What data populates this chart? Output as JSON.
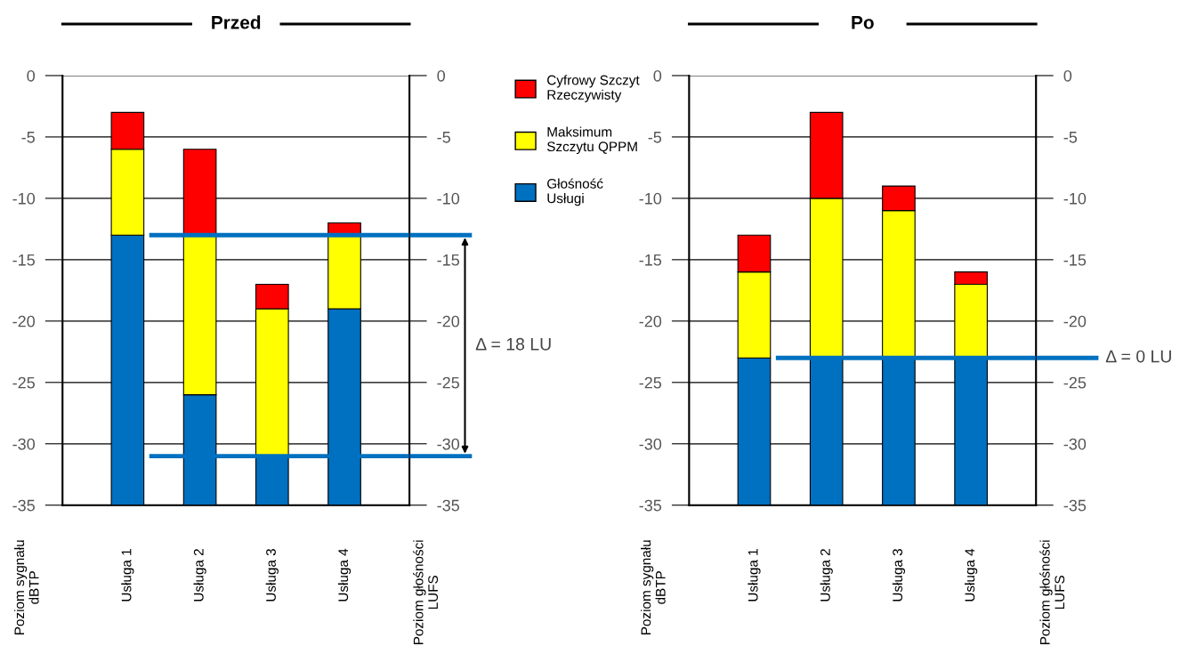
{
  "chart_data": [
    {
      "type": "bar",
      "title": "Przed",
      "categories": [
        "Usługa 1",
        "Usługa 2",
        "Usługa 3",
        "Usługa 4"
      ],
      "series": [
        {
          "name": "Głośność\nUsługi",
          "color": "#0070c0",
          "base": [
            -35,
            -35,
            -35,
            -35
          ],
          "values": [
            22,
            9,
            4,
            16
          ]
        },
        {
          "name": "Maksimum\nSzczytu QPPM",
          "color": "#ffff00",
          "base": [
            -13,
            -26,
            -31,
            -19
          ],
          "values": [
            7,
            13,
            12,
            6
          ]
        },
        {
          "name": "Cyfrowy Szczyt\nRzeczywisty",
          "color": "#ff0000",
          "base": [
            -6,
            -13,
            -19,
            -13
          ],
          "values": [
            3,
            7,
            2,
            1
          ]
        }
      ],
      "ylim": [
        -35,
        0
      ],
      "yticks": [
        0,
        -5,
        -10,
        -15,
        -20,
        -25,
        -30,
        -35
      ],
      "y2lim": [
        -35,
        0
      ],
      "y2ticks": [
        0,
        -5,
        -10,
        -15,
        -20,
        -25,
        -30,
        -35
      ],
      "ylabel": "Poziom sygnału\ndBTP",
      "y2label": "Poziom głośności\nLUFS",
      "grid": "y",
      "legend": "right",
      "ref_lines": [
        {
          "axis": "y",
          "value": -13,
          "color": "#0070c0"
        },
        {
          "axis": "y",
          "value": -31,
          "color": "#0070c0"
        }
      ],
      "annotations": [
        "Δ = 18 LU"
      ]
    },
    {
      "type": "bar",
      "title": "Po",
      "categories": [
        "Usługa 1",
        "Usługa 2",
        "Usługa 3",
        "Usługa 4"
      ],
      "series": [
        {
          "color": "#0070c0",
          "base": [
            -35,
            -35,
            -35,
            -35
          ],
          "values": [
            12,
            12,
            12,
            12
          ]
        },
        {
          "color": "#ffff00",
          "base": [
            -23,
            -23,
            -23,
            -23
          ],
          "values": [
            7,
            13,
            12,
            6
          ]
        },
        {
          "color": "#ff0000",
          "base": [
            -16,
            -10,
            -11,
            -17
          ],
          "values": [
            3,
            7,
            2,
            1
          ]
        }
      ],
      "ylim": [
        -35,
        0
      ],
      "yticks": [
        0,
        -5,
        -10,
        -15,
        -20,
        -25,
        -30,
        -35
      ],
      "y2lim": [
        -35,
        0
      ],
      "y2ticks": [
        0,
        -5,
        -10,
        -15,
        -20,
        -25,
        -30,
        -35
      ],
      "ylabel": "Poziom sygnału\ndBTP",
      "y2label": "Poziom głośności\nLUFS",
      "grid": "y",
      "ref_lines": [
        {
          "axis": "y",
          "value": -23,
          "color": "#0070c0"
        }
      ],
      "annotations": [
        "Δ = 0 LU"
      ]
    }
  ]
}
